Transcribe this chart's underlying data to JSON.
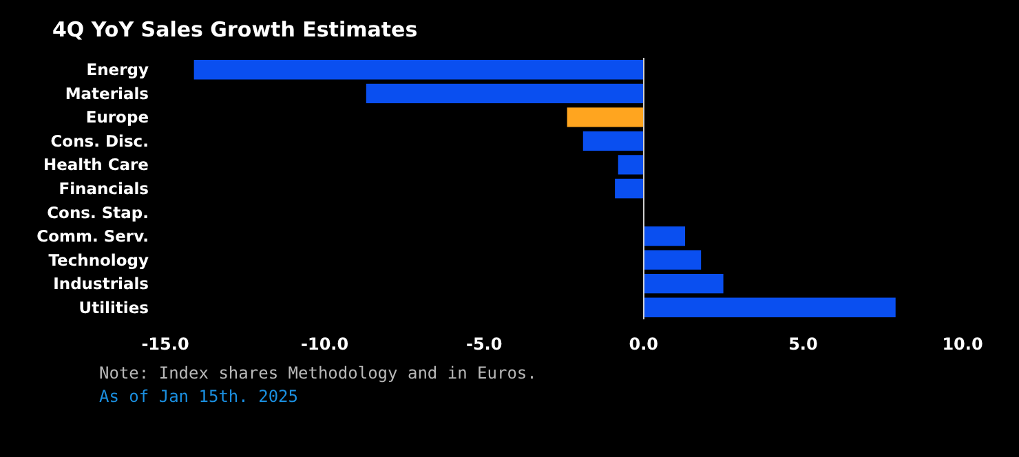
{
  "chart_data": {
    "type": "bar",
    "orientation": "horizontal",
    "title": "4Q YoY Sales Growth Estimates",
    "categories": [
      "Energy",
      "Materials",
      "Europe",
      "Cons. Disc.",
      "Health Care",
      "Financials",
      "Cons. Stap.",
      "Comm. Serv.",
      "Technology",
      "Industrials",
      "Utilities"
    ],
    "values": [
      -14.1,
      -8.7,
      -2.4,
      -1.9,
      -0.8,
      -0.9,
      0.0,
      1.3,
      1.8,
      2.5,
      7.9
    ],
    "colors": [
      "#0a4ff0",
      "#0a4ff0",
      "#ffa51f",
      "#0a4ff0",
      "#0a4ff0",
      "#0a4ff0",
      "#0a4ff0",
      "#0a4ff0",
      "#0a4ff0",
      "#0a4ff0",
      "#0a4ff0"
    ],
    "xlim": [
      -15,
      10
    ],
    "xticks": [
      {
        "value": -15,
        "label": "-15.0"
      },
      {
        "value": -10,
        "label": "-10.0"
      },
      {
        "value": -5,
        "label": "-5.0"
      },
      {
        "value": 0,
        "label": "0.0"
      },
      {
        "value": 5,
        "label": "5.0"
      },
      {
        "value": 10,
        "label": "10.0"
      }
    ],
    "ref_lines": [
      {
        "axis": "x",
        "value": 0,
        "color": "#d0d0d0"
      }
    ],
    "grid": false,
    "annotations": [
      "Note: Index shares Methodology and in Euros.",
      "As of Jan 15th. 2025"
    ]
  }
}
